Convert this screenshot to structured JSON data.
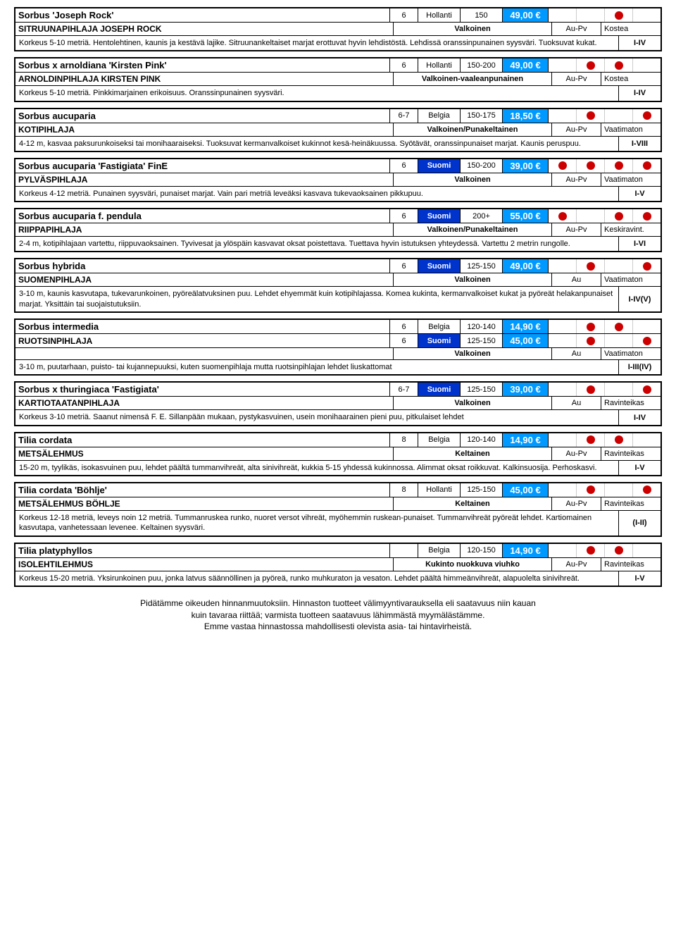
{
  "products": [
    {
      "latin": "Sorbus 'Joseph Rock'",
      "common": "SITRUUNAPIHLAJA JOSEPH ROCK",
      "variants": [
        {
          "pot": "6",
          "origin": "Hollanti",
          "origin_blue": false,
          "size": "150",
          "price": "49,00 €",
          "dots": [
            0,
            0,
            1,
            0
          ]
        }
      ],
      "flower": "Valkoinen",
      "light": "Au-Pv",
      "soil": "Kostea",
      "desc": "Korkeus 5-10 metriä. Hentolehtinen, kaunis ja kestävä lajike. Sitruunankeltaiset marjat erottuvat hyvin lehdistöstä. Lehdissä oranssinpunainen syysväri. Tuoksuvat kukat.",
      "zone": "I-IV"
    },
    {
      "latin": "Sorbus x arnoldiana 'Kirsten Pink'",
      "common": "ARNOLDINPIHLAJA KIRSTEN PINK",
      "variants": [
        {
          "pot": "6",
          "origin": "Hollanti",
          "origin_blue": false,
          "size": "150-200",
          "price": "49,00 €",
          "dots": [
            0,
            1,
            1,
            0
          ]
        }
      ],
      "flower": "Valkoinen-vaaleanpunainen",
      "light": "Au-Pv",
      "soil": "Kostea",
      "desc": "Korkeus 5-10 metriä. Pinkkimarjainen erikoisuus. Oranssinpunainen syysväri.",
      "zone": "I-IV"
    },
    {
      "latin": "Sorbus aucuparia",
      "common": "KOTIPIHLAJA",
      "variants": [
        {
          "pot": "6-7",
          "origin": "Belgia",
          "origin_blue": false,
          "size": "150-175",
          "price": "18,50 €",
          "dots": [
            0,
            1,
            0,
            1
          ]
        }
      ],
      "flower": "Valkoinen/Punakeltainen",
      "light": "Au-Pv",
      "soil": "Vaatimaton",
      "desc": "4-12 m, kasvaa paksurunkoiseksi tai monihaaraiseksi. Tuoksuvat kermanvalkoiset kukinnot kesä-heinäkuussa. Syötävät, oranssinpunaiset marjat. Kaunis peruspuu.",
      "zone": "I-VIII"
    },
    {
      "latin": "Sorbus aucuparia 'Fastigiata' FinE",
      "common": "PYLVÄSPIHLAJA",
      "variants": [
        {
          "pot": "6",
          "origin": "Suomi",
          "origin_blue": true,
          "size": "150-200",
          "price": "39,00 €",
          "dots": [
            1,
            1,
            1,
            1
          ]
        }
      ],
      "flower": "Valkoinen",
      "light": "Au-Pv",
      "soil": "Vaatimaton",
      "desc": "Korkeus 4-12 metriä. Punainen syysväri, punaiset marjat. Vain pari metriä leveäksi kasvava tukevaoksainen pikkupuu.",
      "zone": "I-V"
    },
    {
      "latin": "Sorbus aucuparia f. pendula",
      "common": "RIIPPAPIHLAJA",
      "variants": [
        {
          "pot": "6",
          "origin": "Suomi",
          "origin_blue": true,
          "size": "200+",
          "price": "55,00 €",
          "dots": [
            1,
            0,
            1,
            1
          ]
        }
      ],
      "flower": "Valkoinen/Punakeltainen",
      "light": "Au-Pv",
      "soil": "Keskiravint.",
      "desc": "2-4 m, kotipihlajaan vartettu, riippuvaoksainen. Tyvivesat ja ylöspäin kasvavat oksat poistettava. Tuettava hyvin istutuksen yhteydessä. Vartettu 2 metrin rungolle.",
      "zone": "I-VI"
    },
    {
      "latin": "Sorbus hybrida",
      "common": "SUOMENPIHLAJA",
      "variants": [
        {
          "pot": "6",
          "origin": "Suomi",
          "origin_blue": true,
          "size": "125-150",
          "price": "49,00 €",
          "dots": [
            0,
            1,
            0,
            1
          ]
        }
      ],
      "flower": "Valkoinen",
      "light": "Au",
      "soil": "Vaatimaton",
      "desc": "3-10 m, kaunis kasvutapa, tukevarunkoinen, pyöreälatvuksinen puu. Lehdet ehyemmät kuin kotipihlajassa. Komea kukinta, kermanvalkoiset kukat ja pyöreät helakanpunaiset marjat. Yksittäin tai suojaistutuksiin.",
      "zone": "I-IV(V)"
    },
    {
      "latin": "Sorbus intermedia",
      "common": "RUOTSINPIHLAJA",
      "variants": [
        {
          "pot": "6",
          "origin": "Belgia",
          "origin_blue": false,
          "size": "120-140",
          "price": "14,90 €",
          "dots": [
            0,
            1,
            1,
            0
          ]
        },
        {
          "pot": "6",
          "origin": "Suomi",
          "origin_blue": true,
          "size": "125-150",
          "price": "45,00 €",
          "dots": [
            0,
            1,
            0,
            1
          ]
        }
      ],
      "flower": "Valkoinen",
      "light": "Au",
      "soil": "Vaatimaton",
      "desc": "3-10 m, puutarhaan, puisto- tai kujannepuuksi, kuten suomenpihlaja mutta ruotsinpihlajan lehdet liuskattomat",
      "zone": "I-III(IV)"
    },
    {
      "latin": "Sorbus x thuringiaca 'Fastigiata'",
      "common": "KARTIOTAATANPIHLAJA",
      "variants": [
        {
          "pot": "6-7",
          "origin": "Suomi",
          "origin_blue": true,
          "size": "125-150",
          "price": "39,00 €",
          "dots": [
            0,
            1,
            0,
            1
          ]
        }
      ],
      "flower": "Valkoinen",
      "light": "Au",
      "soil": "Ravinteikas",
      "desc": "Korkeus 3-10 metriä. Saanut nimensä F. E. Sillanpään mukaan, pystykasvuinen, usein monihaarainen pieni puu, pitkulaiset lehdet",
      "zone": "I-IV"
    },
    {
      "latin": "Tilia cordata",
      "common": "METSÄLEHMUS",
      "variants": [
        {
          "pot": "8",
          "origin": "Belgia",
          "origin_blue": false,
          "size": "120-140",
          "price": "14,90 €",
          "dots": [
            0,
            1,
            1,
            0
          ]
        }
      ],
      "flower": "Keltainen",
      "light": "Au-Pv",
      "soil": "Ravinteikas",
      "desc": "15-20 m, tyylikäs, isokasvuinen puu, lehdet päältä tummanvihreät, alta sinivihreät, kukkia 5-15 yhdessä kukinnossa. Alimmat oksat roikkuvat. Kalkinsuosija. Perhoskasvi.",
      "zone": "I-V"
    },
    {
      "latin": "Tilia cordata 'Böhlje'",
      "common": "METSÄLEHMUS BÖHLJE",
      "variants": [
        {
          "pot": "8",
          "origin": "Hollanti",
          "origin_blue": false,
          "size": "125-150",
          "price": "45,00 €",
          "dots": [
            0,
            1,
            0,
            1
          ]
        }
      ],
      "flower": "Keltainen",
      "light": "Au-Pv",
      "soil": "Ravinteikas",
      "desc": "Korkeus 12-18 metriä, leveys noin 12 metriä. Tummanruskea runko, nuoret versot vihreät, myöhemmin ruskean-punaiset. Tummanvihreät pyöreät lehdet. Kartiomainen kasvutapa, vanhetessaan levenee. Keltainen syysväri.",
      "zone": "(I-II)"
    },
    {
      "latin": "Tilia platyphyllos",
      "common": "ISOLEHTILEHMUS",
      "variants": [
        {
          "pot": "",
          "origin": "Belgia",
          "origin_blue": false,
          "size": "120-150",
          "price": "14,90 €",
          "dots": [
            0,
            1,
            1,
            0
          ]
        }
      ],
      "flower": "Kukinto nuokkuva viuhko",
      "light": "Au-Pv",
      "soil": "Ravinteikas",
      "desc": "Korkeus 15-20 metriä. Yksirunkoinen puu, jonka latvus säännöllinen ja pyöreä, runko muhkuraton ja vesaton. Lehdet päältä himmeänvihreät, alapuolelta sinivihreät.",
      "zone": "I-V"
    }
  ],
  "footer": {
    "l1": "Pidätämme oikeuden hinnanmuutoksiin. Hinnaston tuotteet välimyyntivarauksella eli saatavuus niin kauan",
    "l2": "kuin tavaraa riittää; varmista tuotteen saatavuus lähimmästä myymälästämme.",
    "l3": "Emme vastaa hinnastossa mahdollisesti olevista asia- tai hintavirheistä."
  },
  "colors": {
    "price_bg": "#0099ff",
    "origin_blue_bg": "#0033cc",
    "dot": "#cc0000",
    "border": "#000000"
  }
}
